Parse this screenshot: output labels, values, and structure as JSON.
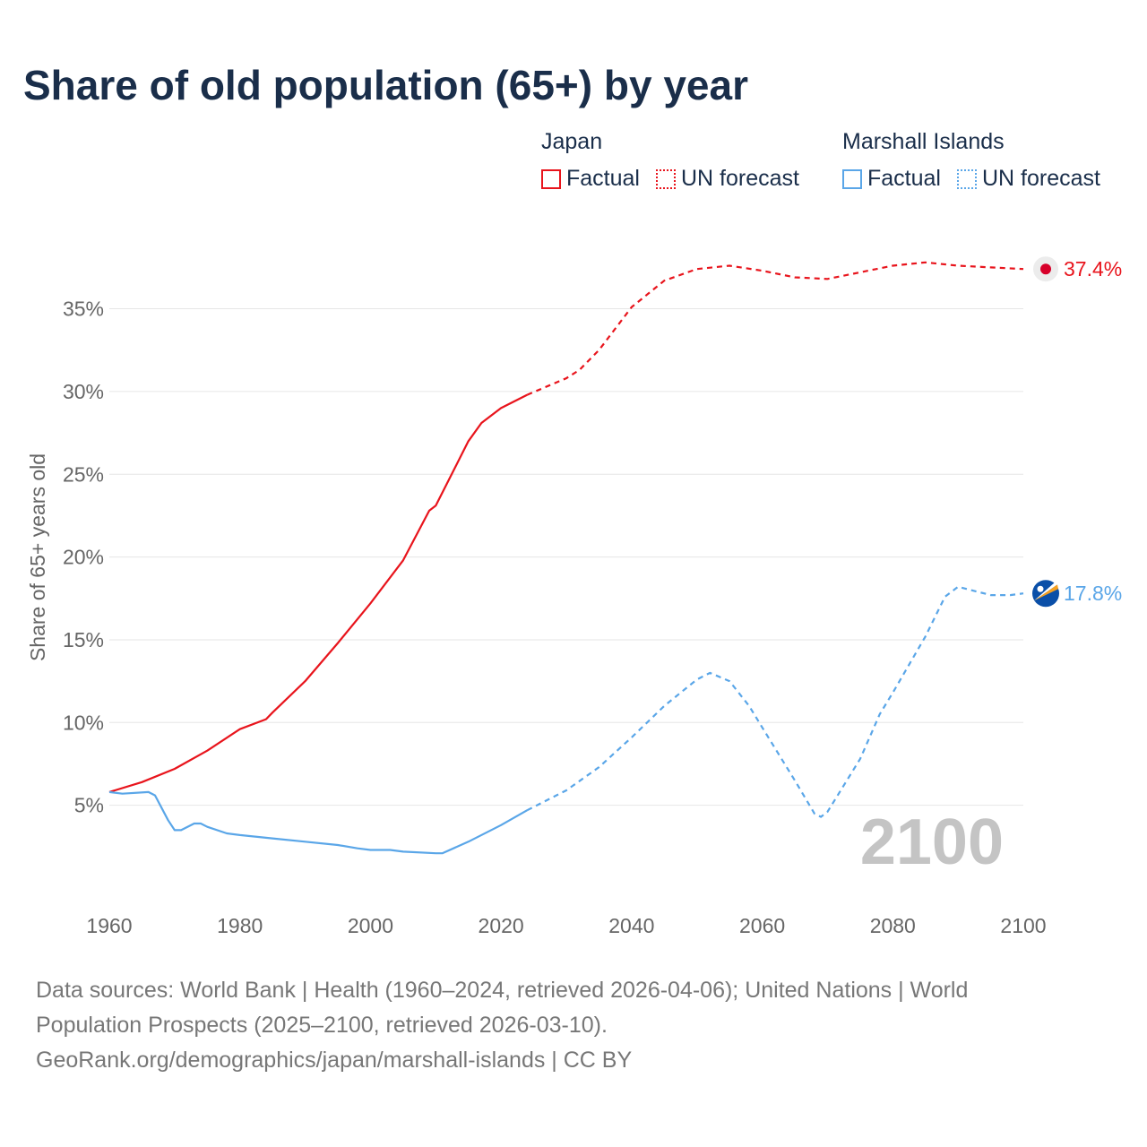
{
  "chart_data": {
    "type": "line",
    "title": "Share of old population (65+) by year",
    "xlabel": "",
    "ylabel": "Share of 65+ years old",
    "xlim": [
      1960,
      2100
    ],
    "ylim": [
      0,
      37.5
    ],
    "x_ticks": [
      "1960",
      "1980",
      "2000",
      "2020",
      "2040",
      "2060",
      "2080",
      "2100"
    ],
    "y_ticks": [
      "5%",
      "10%",
      "15%",
      "20%",
      "25%",
      "30%",
      "35%"
    ],
    "grid": true,
    "year_watermark": "2100",
    "legend": {
      "placement": "top-right",
      "groups": [
        {
          "name": "Japan",
          "items": [
            "Factual",
            "UN forecast"
          ],
          "color": "#e8141c"
        },
        {
          "name": "Marshall Islands",
          "items": [
            "Factual",
            "UN forecast"
          ],
          "color": "#5aa6e8"
        }
      ]
    },
    "series": [
      {
        "name": "Japan",
        "color": "#e8141c",
        "end_label": "37.4%",
        "factual": {
          "x": [
            1960,
            1965,
            1970,
            1975,
            1980,
            1984,
            1985,
            1990,
            1995,
            2000,
            2005,
            2009,
            2010,
            2015,
            2017,
            2020,
            2024
          ],
          "y": [
            5.8,
            6.4,
            7.2,
            8.3,
            9.6,
            10.2,
            10.6,
            12.5,
            14.8,
            17.2,
            19.8,
            22.8,
            23.1,
            27.0,
            28.1,
            29.0,
            29.8
          ]
        },
        "forecast": {
          "x": [
            2024,
            2030,
            2032,
            2035,
            2040,
            2045,
            2050,
            2055,
            2060,
            2065,
            2070,
            2075,
            2080,
            2085,
            2090,
            2095,
            2100
          ],
          "y": [
            29.8,
            30.8,
            31.3,
            32.5,
            35.1,
            36.7,
            37.4,
            37.6,
            37.3,
            36.9,
            36.8,
            37.2,
            37.6,
            37.8,
            37.6,
            37.5,
            37.4
          ]
        }
      },
      {
        "name": "Marshall Islands",
        "color": "#5aa6e8",
        "end_label": "17.8%",
        "factual": {
          "x": [
            1960,
            1962,
            1966,
            1967,
            1969,
            1970,
            1971,
            1973,
            1974,
            1975,
            1978,
            1980,
            1985,
            1990,
            1995,
            1998,
            2000,
            2003,
            2005,
            2010,
            2011,
            2015,
            2020,
            2024
          ],
          "y": [
            5.8,
            5.7,
            5.8,
            5.6,
            4.1,
            3.5,
            3.5,
            3.9,
            3.9,
            3.7,
            3.3,
            3.2,
            3.0,
            2.8,
            2.6,
            2.4,
            2.3,
            2.3,
            2.2,
            2.1,
            2.1,
            2.8,
            3.8,
            4.7
          ]
        },
        "forecast": {
          "x": [
            2024,
            2030,
            2035,
            2040,
            2045,
            2050,
            2052,
            2055,
            2058,
            2060,
            2065,
            2068,
            2069,
            2070,
            2075,
            2078,
            2080,
            2085,
            2088,
            2090,
            2095,
            2098,
            2100
          ],
          "y": [
            4.7,
            5.9,
            7.3,
            9.1,
            11.0,
            12.6,
            13.0,
            12.5,
            11.0,
            9.7,
            6.5,
            4.5,
            4.3,
            4.6,
            7.8,
            10.5,
            11.8,
            15.2,
            17.6,
            18.2,
            17.7,
            17.7,
            17.8
          ]
        }
      }
    ]
  },
  "footer": {
    "line1": "Data sources: World Bank | Health (1960–2024, retrieved 2026-04-06); United Nations | World",
    "line2": "Population Prospects (2025–2100, retrieved 2026-03-10).",
    "line3": "GeoRank.org/demographics/japan/marshall-islands | CC BY"
  }
}
